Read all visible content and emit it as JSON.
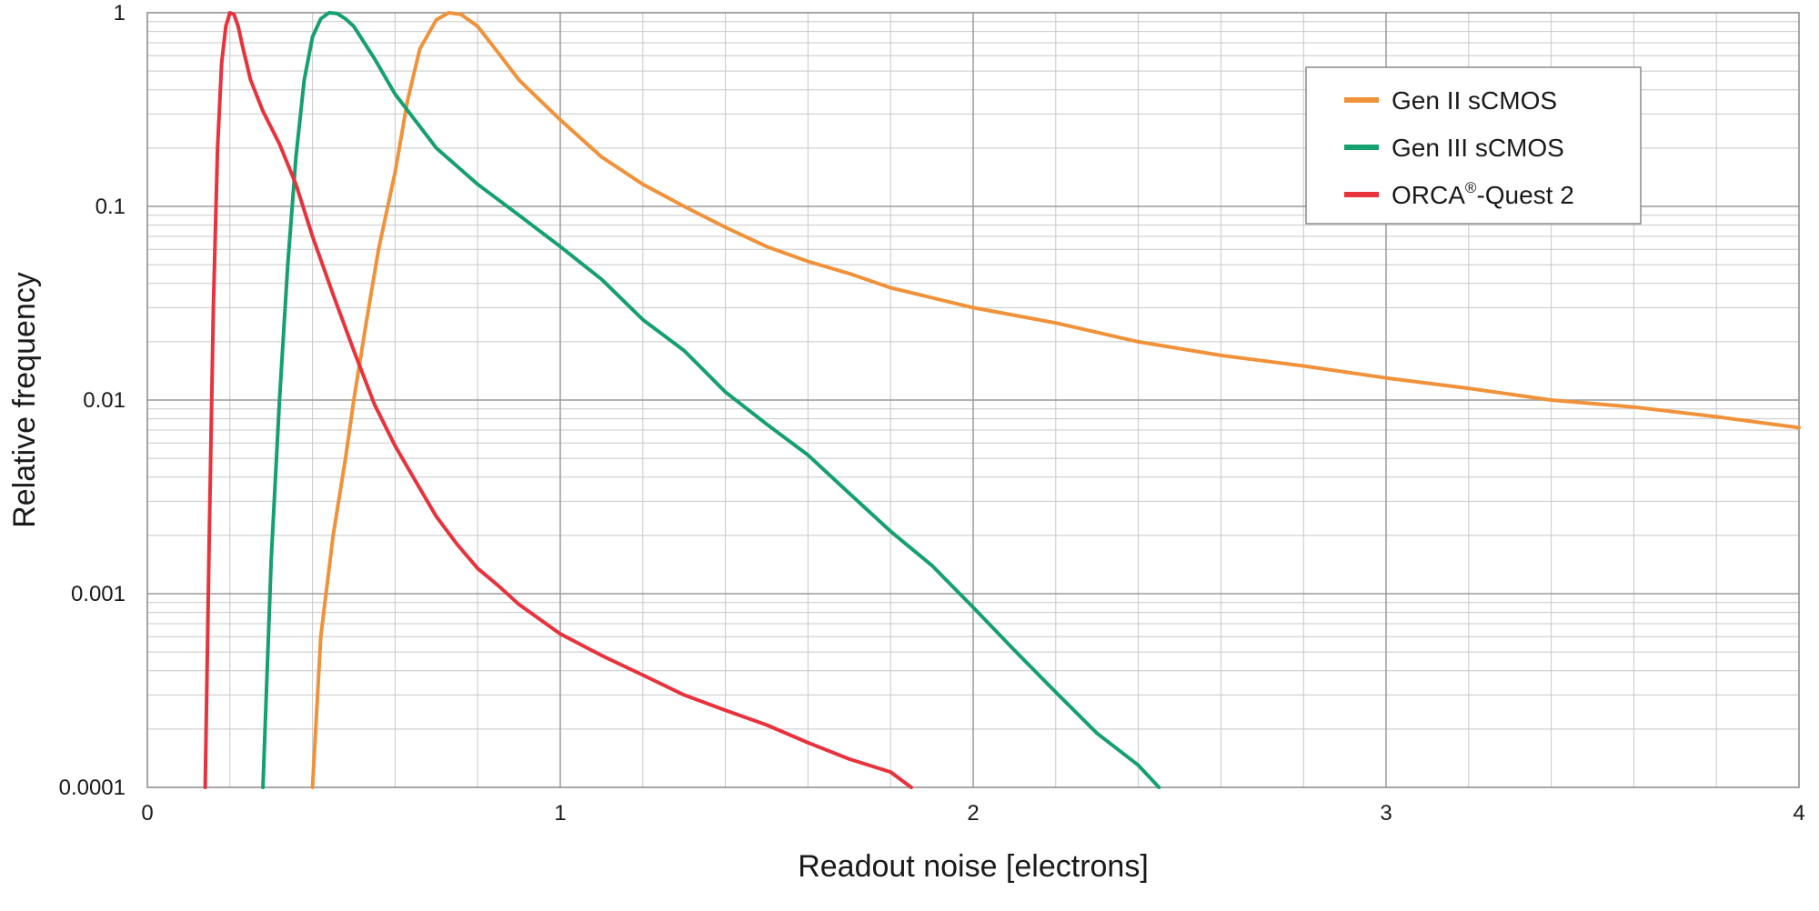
{
  "chart_data": {
    "type": "line",
    "xlabel": "Readout noise [electrons]",
    "ylabel": "Relative frequency",
    "xlim": [
      0,
      4
    ],
    "ylim": [
      0.0001,
      1
    ],
    "y_scale": "log",
    "grid": true,
    "legend_position": "top-right",
    "x_ticks": [
      "0",
      "1",
      "2",
      "3",
      "4"
    ],
    "y_ticks": [
      "0.0001",
      "0.001",
      "0.01",
      "0.1",
      "1"
    ],
    "series": [
      {
        "name": "Gen II sCMOS",
        "legend_main": "Gen II sCMOS",
        "legend_sup": "",
        "legend_suffix": "",
        "color": "#f0923a",
        "x": [
          0.4,
          0.42,
          0.45,
          0.48,
          0.5,
          0.53,
          0.56,
          0.6,
          0.63,
          0.66,
          0.7,
          0.73,
          0.76,
          0.8,
          0.85,
          0.9,
          1.0,
          1.1,
          1.2,
          1.3,
          1.4,
          1.5,
          1.6,
          1.7,
          1.8,
          2.0,
          2.2,
          2.4,
          2.6,
          2.8,
          3.0,
          3.2,
          3.4,
          3.6,
          3.8,
          4.0
        ],
        "y": [
          0.0001,
          0.0006,
          0.002,
          0.005,
          0.01,
          0.025,
          0.06,
          0.15,
          0.35,
          0.65,
          0.92,
          1.0,
          0.98,
          0.85,
          0.62,
          0.45,
          0.28,
          0.18,
          0.13,
          0.1,
          0.078,
          0.062,
          0.052,
          0.045,
          0.038,
          0.03,
          0.025,
          0.02,
          0.017,
          0.015,
          0.013,
          0.0115,
          0.01,
          0.0092,
          0.0082,
          0.0072
        ]
      },
      {
        "name": "Gen III sCMOS",
        "legend_main": "Gen III sCMOS",
        "legend_sup": "",
        "legend_suffix": "",
        "color": "#15a06f",
        "x": [
          0.28,
          0.3,
          0.32,
          0.34,
          0.36,
          0.38,
          0.4,
          0.42,
          0.44,
          0.46,
          0.48,
          0.5,
          0.55,
          0.6,
          0.7,
          0.8,
          0.9,
          1.0,
          1.1,
          1.2,
          1.3,
          1.4,
          1.5,
          1.6,
          1.7,
          1.8,
          1.9,
          2.0,
          2.1,
          2.2,
          2.3,
          2.4,
          2.45
        ],
        "y": [
          0.0001,
          0.0015,
          0.01,
          0.05,
          0.18,
          0.45,
          0.75,
          0.93,
          1.0,
          0.99,
          0.93,
          0.85,
          0.58,
          0.38,
          0.2,
          0.13,
          0.09,
          0.062,
          0.042,
          0.026,
          0.018,
          0.011,
          0.0075,
          0.0052,
          0.0033,
          0.0021,
          0.0014,
          0.00085,
          0.00051,
          0.00031,
          0.00019,
          0.00013,
          0.0001
        ]
      },
      {
        "name": "ORCA®-Quest 2",
        "legend_main": "ORCA",
        "legend_sup": "®",
        "legend_suffix": "-Quest 2",
        "color": "#e8323c",
        "x": [
          0.14,
          0.15,
          0.16,
          0.17,
          0.18,
          0.19,
          0.2,
          0.21,
          0.22,
          0.23,
          0.25,
          0.28,
          0.32,
          0.36,
          0.4,
          0.45,
          0.5,
          0.55,
          0.6,
          0.65,
          0.7,
          0.75,
          0.8,
          0.85,
          0.9,
          1.0,
          1.1,
          1.2,
          1.3,
          1.4,
          1.5,
          1.6,
          1.7,
          1.8,
          1.85
        ],
        "y": [
          0.0001,
          0.002,
          0.03,
          0.2,
          0.55,
          0.85,
          1.0,
          0.98,
          0.85,
          0.68,
          0.45,
          0.31,
          0.21,
          0.13,
          0.07,
          0.035,
          0.018,
          0.0095,
          0.0058,
          0.0038,
          0.0025,
          0.0018,
          0.00135,
          0.0011,
          0.00088,
          0.00062,
          0.00048,
          0.00038,
          0.0003,
          0.00025,
          0.00021,
          0.00017,
          0.00014,
          0.00012,
          0.0001
        ]
      }
    ]
  }
}
